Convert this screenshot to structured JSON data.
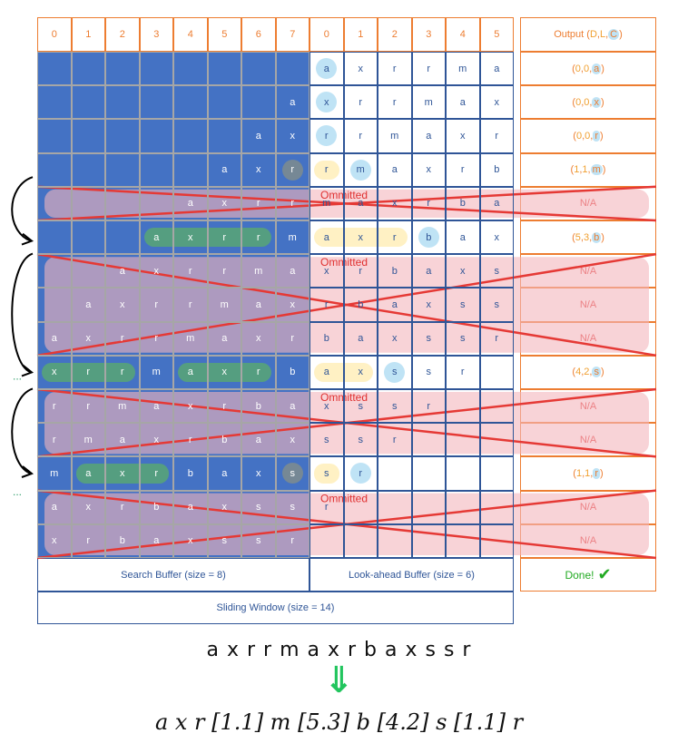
{
  "header": {
    "indices": [
      "0",
      "1",
      "2",
      "3",
      "4",
      "5",
      "6",
      "7",
      "0",
      "1",
      "2",
      "3",
      "4",
      "5"
    ],
    "output_label": "Output (D, L, C)",
    "output_parts": [
      "Output (",
      "D",
      ", ",
      "L",
      ", ",
      "C",
      ")"
    ]
  },
  "rows": [
    {
      "status": "ok",
      "search": [
        "",
        "",
        "",
        "",
        "",
        "",
        "",
        ""
      ],
      "look": [
        "a",
        "x",
        "r",
        "r",
        "m",
        "a"
      ],
      "output": [
        "0",
        "0",
        "a"
      ],
      "highlights": {
        "look_circle": [
          0
        ],
        "look_yellow": []
      }
    },
    {
      "status": "ok",
      "search": [
        "",
        "",
        "",
        "",
        "",
        "",
        "",
        "a"
      ],
      "look": [
        "x",
        "r",
        "r",
        "m",
        "a",
        "x"
      ],
      "output": [
        "0",
        "0",
        "x"
      ],
      "highlights": {
        "look_circle": [
          0
        ],
        "look_yellow": []
      }
    },
    {
      "status": "ok",
      "search": [
        "",
        "",
        "",
        "",
        "",
        "",
        "a",
        "x"
      ],
      "look": [
        "r",
        "r",
        "m",
        "a",
        "x",
        "r"
      ],
      "output": [
        "0",
        "0",
        "r"
      ],
      "highlights": {
        "look_circle": [
          0
        ],
        "look_yellow": []
      }
    },
    {
      "status": "ok",
      "search": [
        "",
        "",
        "",
        "",
        "",
        "a",
        "x",
        "r"
      ],
      "look": [
        "r",
        "m",
        "a",
        "x",
        "r",
        "b"
      ],
      "output": [
        "1",
        "1",
        "m"
      ],
      "highlights": {
        "look_circle": [
          1
        ],
        "look_yellow": [
          0
        ],
        "search_grey": [
          7
        ]
      }
    },
    {
      "status": "omitted",
      "search": [
        "",
        "",
        "",
        "",
        "a",
        "x",
        "r",
        "r"
      ],
      "look": [
        "m",
        "a",
        "x",
        "r",
        "b",
        "a"
      ],
      "output": [
        "N/A"
      ],
      "note": "Ommitted"
    },
    {
      "status": "ok",
      "search": [
        "",
        "",
        "",
        "a",
        "x",
        "r",
        "r",
        "m"
      ],
      "look": [
        "a",
        "x",
        "r",
        "b",
        "a",
        "x"
      ],
      "output": [
        "5",
        "3",
        "b"
      ],
      "highlights": {
        "look_circle": [
          3
        ],
        "look_yellow": [
          0,
          1,
          2
        ],
        "search_green": [
          3,
          4,
          5,
          6
        ]
      }
    },
    {
      "status": "omitted",
      "search": [
        "",
        "",
        "a",
        "x",
        "r",
        "r",
        "m",
        "a"
      ],
      "look": [
        "x",
        "r",
        "b",
        "a",
        "x",
        "s"
      ],
      "output": [
        "N/A"
      ],
      "note": "Ommitted"
    },
    {
      "status": "omitted",
      "search": [
        "",
        "a",
        "x",
        "r",
        "r",
        "m",
        "a",
        "x"
      ],
      "look": [
        "r",
        "b",
        "a",
        "x",
        "s",
        "s"
      ],
      "output": [
        "N/A"
      ]
    },
    {
      "status": "omitted",
      "search": [
        "a",
        "x",
        "r",
        "r",
        "m",
        "a",
        "x",
        "r"
      ],
      "look": [
        "b",
        "a",
        "x",
        "s",
        "s",
        "r"
      ],
      "output": [
        "N/A"
      ]
    },
    {
      "status": "ok",
      "search": [
        "x",
        "r",
        "r",
        "m",
        "a",
        "x",
        "r",
        "b"
      ],
      "look": [
        "a",
        "x",
        "s",
        "s",
        "r",
        ""
      ],
      "output": [
        "4",
        "2",
        "s"
      ],
      "highlights": {
        "look_circle": [
          2
        ],
        "look_yellow": [
          0,
          1
        ],
        "search_green": [
          0,
          1,
          2,
          4,
          5,
          6
        ]
      }
    },
    {
      "status": "omitted",
      "search": [
        "r",
        "r",
        "m",
        "a",
        "x",
        "r",
        "b",
        "a"
      ],
      "look": [
        "x",
        "s",
        "s",
        "r",
        "",
        ""
      ],
      "output": [
        "N/A"
      ],
      "note": "Ommitted"
    },
    {
      "status": "omitted",
      "search": [
        "r",
        "m",
        "a",
        "x",
        "r",
        "b",
        "a",
        "x"
      ],
      "look": [
        "s",
        "s",
        "r",
        "",
        "",
        ""
      ],
      "output": [
        "N/A"
      ]
    },
    {
      "status": "ok",
      "search": [
        "m",
        "a",
        "x",
        "r",
        "b",
        "a",
        "x",
        "s"
      ],
      "look": [
        "s",
        "r",
        "",
        "",
        "",
        ""
      ],
      "output": [
        "1",
        "1",
        "r"
      ],
      "highlights": {
        "look_circle": [
          1
        ],
        "look_yellow": [
          0
        ],
        "search_green": [
          1,
          2,
          3
        ],
        "search_grey": [
          7
        ]
      }
    },
    {
      "status": "omitted",
      "search": [
        "a",
        "x",
        "r",
        "b",
        "a",
        "x",
        "s",
        "s"
      ],
      "look": [
        "r",
        "",
        "",
        "",
        "",
        ""
      ],
      "output": [
        "N/A"
      ],
      "note": "Ommitted"
    },
    {
      "status": "omitted",
      "search": [
        "x",
        "r",
        "b",
        "a",
        "x",
        "s",
        "s",
        "r"
      ],
      "look": [
        "",
        "",
        "",
        "",
        "",
        ""
      ],
      "output": [
        "N/A"
      ]
    }
  ],
  "footer": {
    "search_buffer": "Search Buffer (size = 8)",
    "lookahead_buffer": "Look-ahead Buffer (size = 6)",
    "sliding_window": "Sliding Window (size = 14)",
    "done": "Done!"
  },
  "side_dots": [
    "...",
    "...",
    "..."
  ],
  "input_sequence": "a x r r m a x r b a x s s r",
  "arrow": "⇓",
  "output_sequence": "a x r [1.1] m [5.3] b [4.2] s [1.1] r",
  "colors": {
    "header_border": "#ED7D31",
    "search_fill": "#4472C4",
    "lookahead_border": "#2F5597",
    "cross": "#E53935",
    "omitted_fill": "#F4B6BC",
    "match_green": "#5BAE6A",
    "circle_blue": "#BFE3F5",
    "yellow": "#FFF1C4",
    "done_green": "#22AA22"
  }
}
